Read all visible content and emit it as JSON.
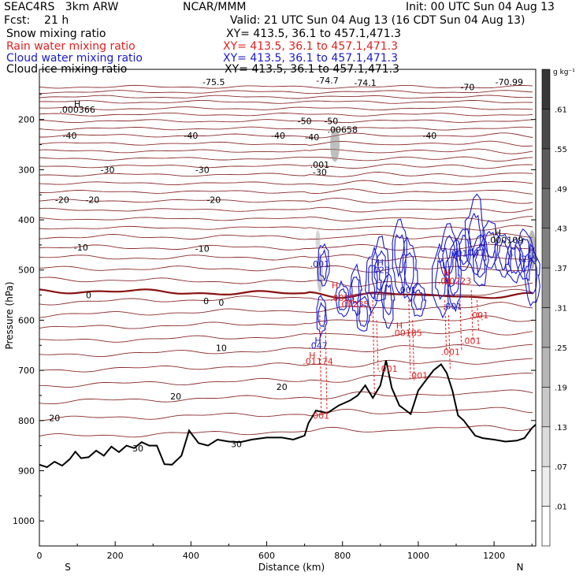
{
  "header": {
    "title": "SEAC4RS   3km ARW",
    "center": "NCAR/MMM",
    "init": "Init: 00 UTC Sun 04 Aug 13",
    "fcst": "Fcst:    21 h",
    "valid": "Valid: 21 UTC Sun 04 Aug 13 (16 CDT Sun 04 Aug 13)"
  },
  "fields": [
    {
      "name": "Snow mixing ratio",
      "xy": "XY= 413.5, 36.1 to 457.1,471.3",
      "color": "#000000"
    },
    {
      "name": "Rain water mixing ratio",
      "xy": "XY= 413.5, 36.1 to 457.1,471.3",
      "color": "#e02020"
    },
    {
      "name": "Cloud water mixing ratio",
      "xy": "XY= 413.5, 36.1 to 457.1,471.3",
      "color": "#1a1acc"
    },
    {
      "name": "Cloud ice mixing ratio",
      "xy": "XY= 413.5, 36.1 to 457.1,471.3",
      "color": "#000000"
    }
  ],
  "chart_data": {
    "type": "contour cross-section",
    "xlabel": "Distance (km)",
    "ylabel": "Pressure (hPa)",
    "xlim": [
      0,
      1310
    ],
    "ylim": [
      1050,
      100
    ],
    "x_ticks": [
      0,
      200,
      400,
      600,
      800,
      1000,
      1200
    ],
    "y_ticks": [
      200,
      300,
      400,
      500,
      600,
      700,
      800,
      900,
      1000
    ],
    "x_end_labels": {
      "left": "S",
      "right": "N"
    },
    "colorbar": {
      "unit": "g kg⁻¹",
      "levels": [
        ".01",
        ".07",
        ".13",
        ".19",
        ".25",
        ".31",
        ".37",
        ".43",
        ".49",
        ".55",
        ".61"
      ]
    },
    "temperature_isotherms": {
      "levels": [
        -70,
        -60,
        -50,
        -40,
        -30,
        -20,
        -10,
        0,
        10,
        20,
        30
      ],
      "labels": [
        {
          "text": "-75.5",
          "x": 460,
          "p": 125
        },
        {
          "text": "-74.7",
          "x": 760,
          "p": 122
        },
        {
          "text": "-74.1",
          "x": 860,
          "p": 127
        },
        {
          "text": "-70",
          "x": 1130,
          "p": 135
        },
        {
          "text": "-70.99",
          "x": 1240,
          "p": 125
        },
        {
          "text": "-50",
          "x": 700,
          "p": 203
        },
        {
          "text": "-50",
          "x": 770,
          "p": 203
        },
        {
          "text": "-40",
          "x": 80,
          "p": 232
        },
        {
          "text": "-40",
          "x": 400,
          "p": 232
        },
        {
          "text": "-40",
          "x": 630,
          "p": 232
        },
        {
          "text": "-40",
          "x": 720,
          "p": 235
        },
        {
          "text": "-40",
          "x": 1030,
          "p": 232
        },
        {
          "text": "-30",
          "x": 180,
          "p": 300
        },
        {
          "text": "-30",
          "x": 430,
          "p": 300
        },
        {
          "text": "-30",
          "x": 740,
          "p": 305
        },
        {
          "text": "-20",
          "x": 60,
          "p": 360
        },
        {
          "text": "-20",
          "x": 140,
          "p": 360
        },
        {
          "text": "-20",
          "x": 460,
          "p": 360
        },
        {
          "text": "-10",
          "x": 110,
          "p": 455
        },
        {
          "text": "-10",
          "x": 430,
          "p": 457
        },
        {
          "text": "0",
          "x": 130,
          "p": 550
        },
        {
          "text": "0",
          "x": 440,
          "p": 562
        },
        {
          "text": "0",
          "x": 480,
          "p": 565
        },
        {
          "text": "10",
          "x": 480,
          "p": 655
        },
        {
          "text": "20",
          "x": 360,
          "p": 752
        },
        {
          "text": "20",
          "x": 640,
          "p": 733
        },
        {
          "text": "20",
          "x": 40,
          "p": 795
        },
        {
          "text": "30",
          "x": 520,
          "p": 847
        },
        {
          "text": "30",
          "x": 260,
          "p": 855
        }
      ]
    },
    "extremum_labels": [
      {
        "text": "H",
        "x": 100,
        "p": 168,
        "color": "#000000"
      },
      {
        "text": ".000366",
        "x": 100,
        "p": 180,
        "color": "#000000"
      },
      {
        "text": ".00658",
        "x": 800,
        "p": 220,
        "color": "#000000"
      },
      {
        "text": ".001",
        "x": 740,
        "p": 290,
        "color": "#000000"
      },
      {
        "text": "H",
        "x": 1210,
        "p": 425,
        "color": "#000000"
      },
      {
        "text": ".000109",
        "x": 1230,
        "p": 440,
        "color": "#000000"
      },
      {
        "text": ".001",
        "x": 740,
        "p": 488,
        "color": "#1a1acc"
      },
      {
        "text": "H",
        "x": 900,
        "p": 485,
        "color": "#1a1acc"
      },
      {
        "text": ".023",
        "x": 900,
        "p": 500,
        "color": "#1a1acc"
      },
      {
        "text": ".001",
        "x": 1105,
        "p": 467,
        "color": "#1a1acc"
      },
      {
        "text": ".001",
        "x": 1150,
        "p": 465,
        "color": "#1a1acc"
      },
      {
        "text": "H",
        "x": 1300,
        "p": 460,
        "color": "#1a1acc"
      },
      {
        "text": ".255",
        "x": 1290,
        "p": 478,
        "color": "#1a1acc"
      },
      {
        "text": ".001",
        "x": 970,
        "p": 540,
        "color": "#1a1acc"
      },
      {
        "text": ".001",
        "x": 1090,
        "p": 572,
        "color": "#1a1acc"
      },
      {
        "text": "H",
        "x": 780,
        "p": 530,
        "color": "#e02020"
      },
      {
        "text": ".0025",
        "x": 800,
        "p": 555,
        "color": "#e02020"
      },
      {
        "text": ".00235",
        "x": 830,
        "p": 568,
        "color": "#e02020"
      },
      {
        "text": "H",
        "x": 1075,
        "p": 505,
        "color": "#e02020"
      },
      {
        "text": ".01",
        "x": 1070,
        "p": 522,
        "color": "#e02020"
      },
      {
        "text": ".00223",
        "x": 1100,
        "p": 522,
        "color": "#e02020"
      },
      {
        "text": ".001",
        "x": 1160,
        "p": 590,
        "color": "#e02020"
      },
      {
        "text": "H",
        "x": 950,
        "p": 610,
        "color": "#e02020"
      },
      {
        "text": ".00185",
        "x": 970,
        "p": 625,
        "color": "#e02020"
      },
      {
        "text": "H",
        "x": 735,
        "p": 640,
        "color": "#1a1acc"
      },
      {
        "text": ".047",
        "x": 735,
        "p": 650,
        "color": "#1a1acc"
      },
      {
        "text": "H",
        "x": 720,
        "p": 670,
        "color": "#e02020"
      },
      {
        "text": ".01174",
        "x": 735,
        "p": 682,
        "color": "#e02020"
      },
      {
        "text": ".001",
        "x": 1140,
        "p": 641,
        "color": "#e02020"
      },
      {
        "text": ".001",
        "x": 1085,
        "p": 663,
        "color": "#e02020"
      },
      {
        "text": ".001",
        "x": 920,
        "p": 697,
        "color": "#e02020"
      },
      {
        "text": ".001",
        "x": 1000,
        "p": 710,
        "color": "#e02020"
      },
      {
        "text": ".001",
        "x": 740,
        "p": 790,
        "color": "#e02020"
      }
    ],
    "terrain_surface_pressure": [
      [
        0,
        888
      ],
      [
        20,
        893
      ],
      [
        40,
        882
      ],
      [
        60,
        890
      ],
      [
        80,
        877
      ],
      [
        95,
        862
      ],
      [
        110,
        875
      ],
      [
        130,
        873
      ],
      [
        150,
        860
      ],
      [
        170,
        870
      ],
      [
        190,
        852
      ],
      [
        210,
        863
      ],
      [
        230,
        850
      ],
      [
        250,
        855
      ],
      [
        270,
        843
      ],
      [
        290,
        850
      ],
      [
        310,
        850
      ],
      [
        330,
        887
      ],
      [
        350,
        888
      ],
      [
        375,
        870
      ],
      [
        395,
        820
      ],
      [
        420,
        845
      ],
      [
        445,
        850
      ],
      [
        470,
        838
      ],
      [
        500,
        842
      ],
      [
        530,
        843
      ],
      [
        560,
        838
      ],
      [
        600,
        834
      ],
      [
        640,
        834
      ],
      [
        670,
        838
      ],
      [
        700,
        830
      ],
      [
        710,
        805
      ],
      [
        730,
        780
      ],
      [
        760,
        785
      ],
      [
        790,
        770
      ],
      [
        820,
        760
      ],
      [
        840,
        750
      ],
      [
        860,
        730
      ],
      [
        880,
        755
      ],
      [
        900,
        730
      ],
      [
        915,
        680
      ],
      [
        930,
        735
      ],
      [
        950,
        770
      ],
      [
        980,
        787
      ],
      [
        1000,
        740
      ],
      [
        1020,
        720
      ],
      [
        1040,
        700
      ],
      [
        1060,
        688
      ],
      [
        1075,
        705
      ],
      [
        1090,
        740
      ],
      [
        1105,
        790
      ],
      [
        1120,
        800
      ],
      [
        1150,
        830
      ],
      [
        1170,
        835
      ],
      [
        1200,
        838
      ],
      [
        1230,
        842
      ],
      [
        1260,
        840
      ],
      [
        1280,
        835
      ],
      [
        1300,
        815
      ],
      [
        1310,
        808
      ]
    ]
  }
}
